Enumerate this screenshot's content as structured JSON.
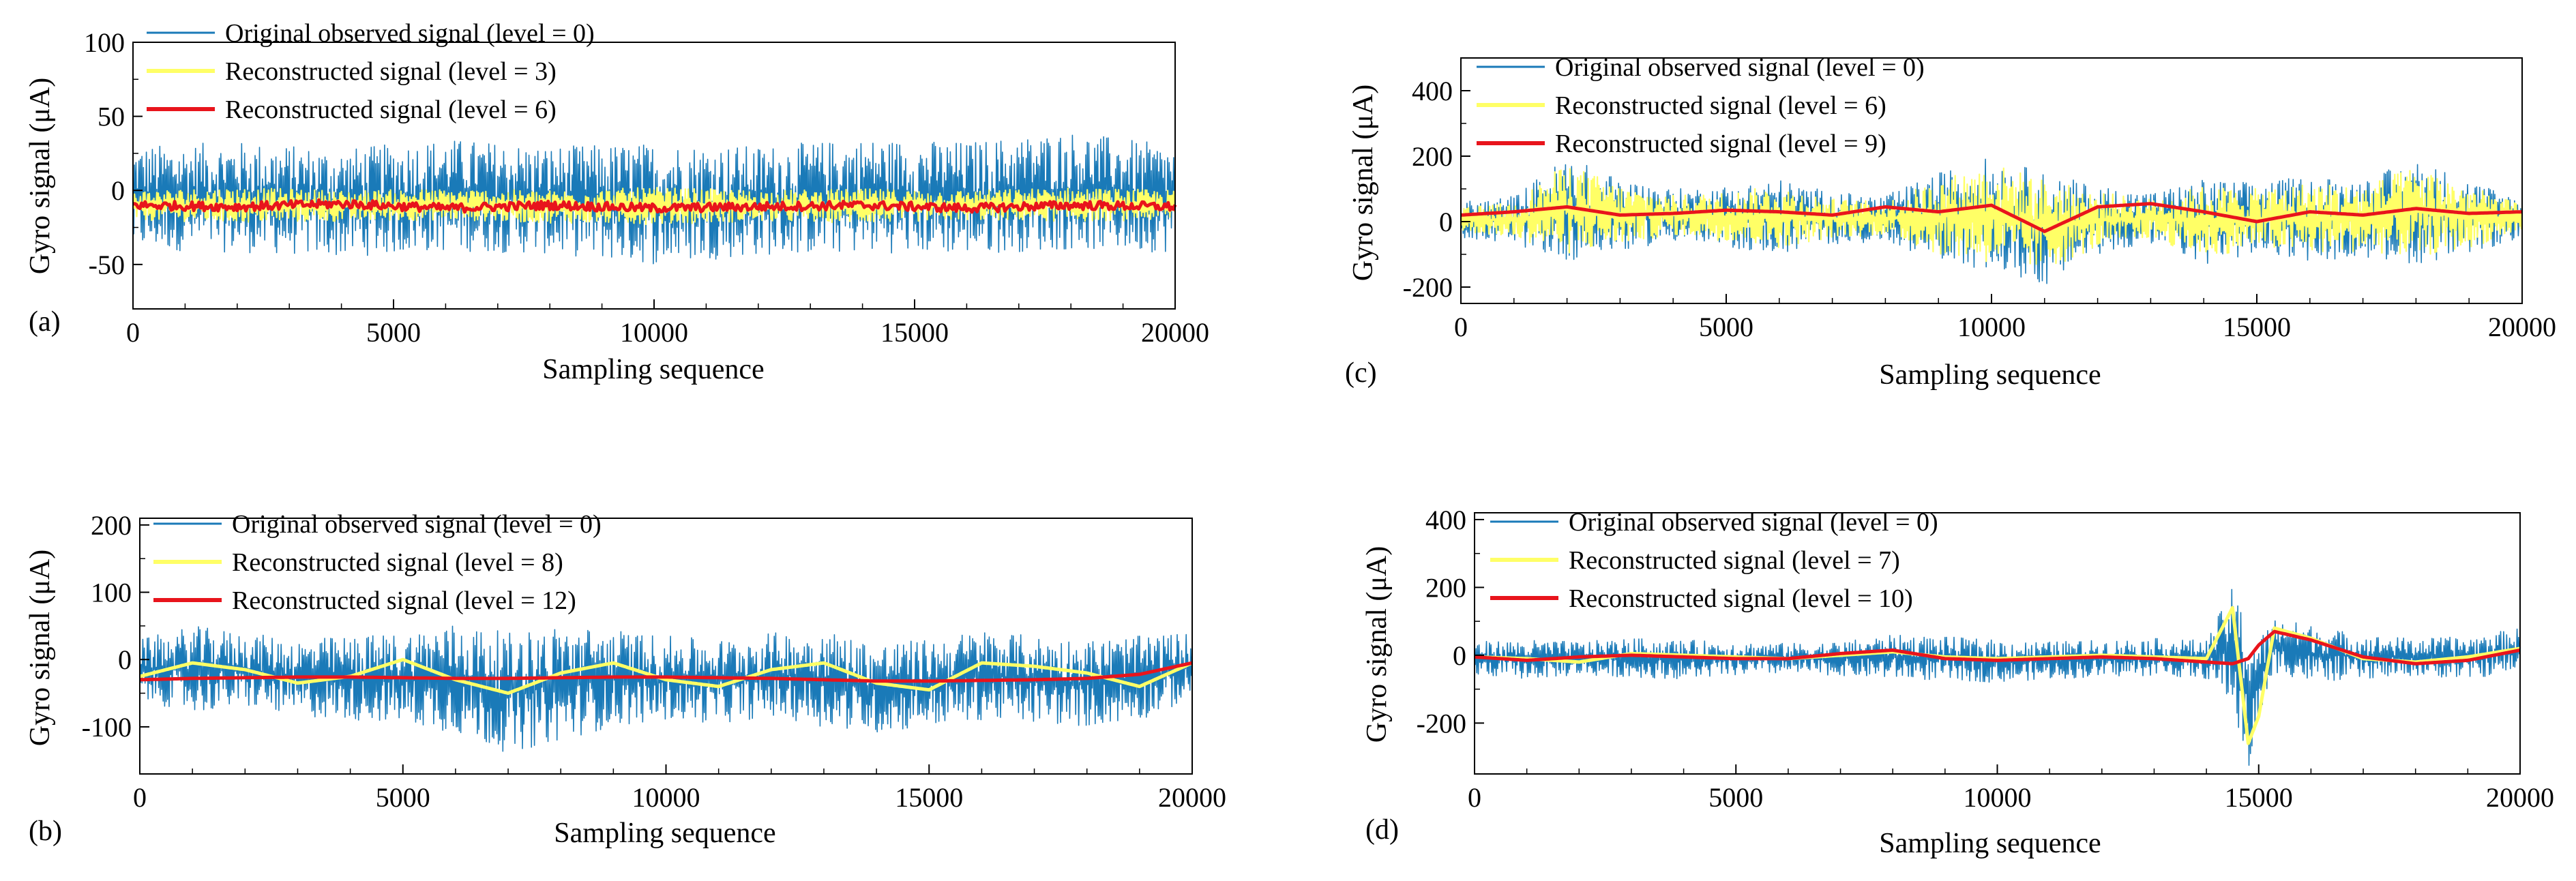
{
  "figure": {
    "panels": [
      {
        "letter": "(a)",
        "xlabel": "Sampling sequence",
        "ylabel": "Gyro  signal (μA)",
        "xlim": [
          0,
          20000
        ],
        "ylim": [
          -80,
          100
        ],
        "xticks": [
          0,
          5000,
          10000,
          15000,
          20000
        ],
        "yticks": [
          -50,
          0,
          50,
          100
        ],
        "legend": [
          {
            "label": "Original observed signal (level = 0)",
            "color": "#1a7ab8"
          },
          {
            "label": "Reconstructed signal (level = 3)",
            "color": "#ffff66"
          },
          {
            "label": "Reconstructed signal (level = 6)",
            "color": "#e8141c"
          }
        ]
      },
      {
        "letter": "(b)",
        "xlabel": "Sampling sequence",
        "ylabel": "Gyro  signal (μA)",
        "xlim": [
          0,
          20000
        ],
        "ylim": [
          -170,
          210
        ],
        "xticks": [
          0,
          5000,
          10000,
          15000,
          20000
        ],
        "yticks": [
          -100,
          0,
          100,
          200
        ],
        "legend": [
          {
            "label": "Original observed signal (level = 0)",
            "color": "#1a7ab8"
          },
          {
            "label": "Reconstructed signal (level = 8)",
            "color": "#ffff66"
          },
          {
            "label": "Reconstructed signal (level = 12)",
            "color": "#e8141c"
          }
        ]
      },
      {
        "letter": "(c)",
        "xlabel": "Sampling sequence",
        "ylabel": "Gyro  signal (μA)",
        "xlim": [
          0,
          20000
        ],
        "ylim": [
          -250,
          500
        ],
        "xticks": [
          0,
          5000,
          10000,
          15000,
          20000
        ],
        "yticks": [
          -200,
          0,
          200,
          400
        ],
        "legend": [
          {
            "label": "Original observed signal (level = 0)",
            "color": "#1a7ab8"
          },
          {
            "label": "Reconstructed signal (level = 6)",
            "color": "#ffff66"
          },
          {
            "label": "Reconstructed signal (level = 9)",
            "color": "#e8141c"
          }
        ]
      },
      {
        "letter": "(d)",
        "xlabel": "Sampling sequence",
        "ylabel": "Gyro  signal (μA)",
        "xlim": [
          0,
          20000
        ],
        "ylim": [
          -350,
          420
        ],
        "xticks": [
          0,
          5000,
          10000,
          15000,
          20000
        ],
        "yticks": [
          -200,
          0,
          200,
          400
        ],
        "legend": [
          {
            "label": "Original observed signal (level = 0)",
            "color": "#1a7ab8"
          },
          {
            "label": "Reconstructed signal (level = 7)",
            "color": "#ffff66"
          },
          {
            "label": "Reconstructed signal (level = 10)",
            "color": "#e8141c"
          }
        ]
      }
    ]
  },
  "chart_data": [
    {
      "type": "line",
      "title": "",
      "xlabel": "Sampling sequence",
      "ylabel": "Gyro  signal (μA)",
      "xlim": [
        0,
        20000
      ],
      "ylim": [
        -80,
        100
      ],
      "grid": false,
      "legend_position": "top-left",
      "x": [
        0,
        2000,
        4000,
        6000,
        8000,
        10000,
        12000,
        14000,
        16000,
        18000,
        20000
      ],
      "series": [
        {
          "name": "Original observed signal (level = 0)",
          "color": "#1a7ab8",
          "envelope_low": [
            -40,
            -42,
            -45,
            -41,
            -43,
            -50,
            -44,
            -42,
            -43,
            -40,
            -42
          ],
          "envelope_high": [
            30,
            33,
            28,
            35,
            30,
            32,
            30,
            35,
            33,
            40,
            30
          ]
        },
        {
          "name": "Reconstructed signal (level = 3)",
          "color": "#ffff66",
          "envelope_low": [
            -20,
            -22,
            -21,
            -20,
            -22,
            -23,
            -21,
            -22,
            -20,
            -21,
            -20
          ],
          "envelope_high": [
            0,
            2,
            0,
            1,
            0,
            2,
            0,
            1,
            0,
            2,
            0
          ]
        },
        {
          "name": "Reconstructed signal (level = 6)",
          "color": "#e8141c",
          "values": [
            -10,
            -11,
            -9,
            -12,
            -10,
            -12,
            -11,
            -10,
            -12,
            -10,
            -11
          ]
        }
      ]
    },
    {
      "type": "line",
      "title": "",
      "xlabel": "Sampling sequence",
      "ylabel": "Gyro  signal (μA)",
      "xlim": [
        0,
        20000
      ],
      "ylim": [
        -170,
        210
      ],
      "grid": false,
      "legend_position": "top-left",
      "x": [
        0,
        1000,
        2000,
        3000,
        4000,
        5000,
        6000,
        7000,
        8000,
        9000,
        10000,
        11000,
        12000,
        13000,
        14000,
        15000,
        16000,
        17000,
        18000,
        19000,
        20000
      ],
      "series": [
        {
          "name": "Original observed signal (level = 0)",
          "color": "#1a7ab8",
          "envelope_low": [
            -60,
            -80,
            -70,
            -85,
            -90,
            -95,
            -110,
            -140,
            -120,
            -100,
            -90,
            -95,
            -85,
            -100,
            -110,
            -100,
            -90,
            -95,
            -100,
            -90,
            -60
          ],
          "envelope_high": [
            30,
            50,
            40,
            30,
            35,
            40,
            55,
            40,
            50,
            45,
            35,
            30,
            40,
            45,
            25,
            30,
            45,
            35,
            30,
            35,
            40
          ]
        },
        {
          "name": "Reconstructed signal (level = 8)",
          "color": "#ffff66",
          "values": [
            -25,
            -5,
            -15,
            -35,
            -25,
            0,
            -30,
            -50,
            -20,
            -5,
            -30,
            -40,
            -15,
            -5,
            -35,
            -45,
            -5,
            -10,
            -20,
            -40,
            -5
          ]
        },
        {
          "name": "Reconstructed signal (level = 12)",
          "color": "#e8141c",
          "values": [
            -30,
            -28,
            -27,
            -26,
            -26,
            -27,
            -28,
            -28,
            -27,
            -26,
            -26,
            -27,
            -28,
            -30,
            -32,
            -32,
            -31,
            -30,
            -28,
            -22,
            -5
          ]
        }
      ]
    },
    {
      "type": "line",
      "title": "",
      "xlabel": "Sampling sequence",
      "ylabel": "Gyro  signal (μA)",
      "xlim": [
        0,
        20000
      ],
      "ylim": [
        -250,
        500
      ],
      "grid": false,
      "legend_position": "top-left",
      "x": [
        0,
        1000,
        2000,
        3000,
        4000,
        5000,
        6000,
        7000,
        8000,
        9000,
        10000,
        11000,
        12000,
        13000,
        14000,
        15000,
        16000,
        17000,
        18000,
        19000,
        20000
      ],
      "series": [
        {
          "name": "Original observed signal (level = 0)",
          "color": "#1a7ab8",
          "envelope_low": [
            -50,
            -70,
            -120,
            -90,
            -60,
            -80,
            -100,
            -70,
            -60,
            -120,
            -150,
            -200,
            -100,
            -70,
            -130,
            -100,
            -120,
            -110,
            -130,
            -100,
            -50
          ],
          "envelope_high": [
            60,
            80,
            200,
            130,
            100,
            110,
            130,
            90,
            80,
            150,
            200,
            150,
            110,
            90,
            130,
            120,
            140,
            130,
            190,
            130,
            70
          ]
        },
        {
          "name": "Reconstructed signal (level = 6)",
          "color": "#ffff66",
          "envelope_low": [
            -30,
            -50,
            -100,
            -70,
            -40,
            -60,
            -80,
            -50,
            -40,
            -100,
            -130,
            -150,
            -80,
            -50,
            -110,
            -80,
            -100,
            -90,
            -110,
            -80,
            -30
          ],
          "envelope_high": [
            40,
            60,
            180,
            110,
            80,
            90,
            110,
            70,
            60,
            130,
            180,
            130,
            90,
            70,
            110,
            100,
            120,
            110,
            170,
            110,
            50
          ]
        },
        {
          "name": "Reconstructed signal (level = 9)",
          "color": "#e8141c",
          "values": [
            20,
            30,
            45,
            20,
            25,
            35,
            30,
            20,
            45,
            30,
            50,
            -30,
            45,
            55,
            30,
            0,
            30,
            20,
            40,
            25,
            30
          ]
        }
      ]
    },
    {
      "type": "line",
      "title": "",
      "xlabel": "Sampling sequence",
      "ylabel": "Gyro  signal (μA)",
      "xlim": [
        0,
        20000
      ],
      "ylim": [
        -350,
        420
      ],
      "grid": false,
      "legend_position": "top-left",
      "x": [
        0,
        1000,
        2000,
        3000,
        4000,
        5000,
        6000,
        7000,
        8000,
        9000,
        10000,
        11000,
        12000,
        13000,
        14000,
        14500,
        14800,
        15000,
        15300,
        16000,
        17000,
        18000,
        19000,
        20000
      ],
      "series": [
        {
          "name": "Original observed signal (level = 0)",
          "color": "#1a7ab8",
          "envelope_low": [
            -60,
            -70,
            -60,
            -65,
            -70,
            -60,
            -55,
            -60,
            -70,
            -75,
            -80,
            -70,
            -65,
            -60,
            -70,
            -150,
            -360,
            -200,
            -50,
            -80,
            -70,
            -60,
            -70,
            -50
          ],
          "envelope_high": [
            40,
            45,
            40,
            50,
            45,
            40,
            35,
            40,
            60,
            55,
            45,
            40,
            45,
            50,
            45,
            200,
            100,
            50,
            110,
            90,
            60,
            50,
            55,
            80
          ]
        },
        {
          "name": "Reconstructed signal (level = 7)",
          "color": "#ffff66",
          "values": [
            -5,
            -10,
            -20,
            5,
            0,
            -5,
            -10,
            0,
            10,
            -5,
            -10,
            -5,
            0,
            -5,
            -10,
            140,
            -260,
            -180,
            80,
            50,
            -10,
            -20,
            -5,
            20
          ]
        },
        {
          "name": "Reconstructed signal (level = 10)",
          "color": "#e8141c",
          "values": [
            -5,
            -15,
            -5,
            0,
            -5,
            -10,
            -10,
            5,
            15,
            -10,
            -15,
            -10,
            -5,
            -10,
            -20,
            -25,
            -10,
            30,
            70,
            45,
            -5,
            -25,
            -15,
            15
          ]
        }
      ]
    }
  ]
}
